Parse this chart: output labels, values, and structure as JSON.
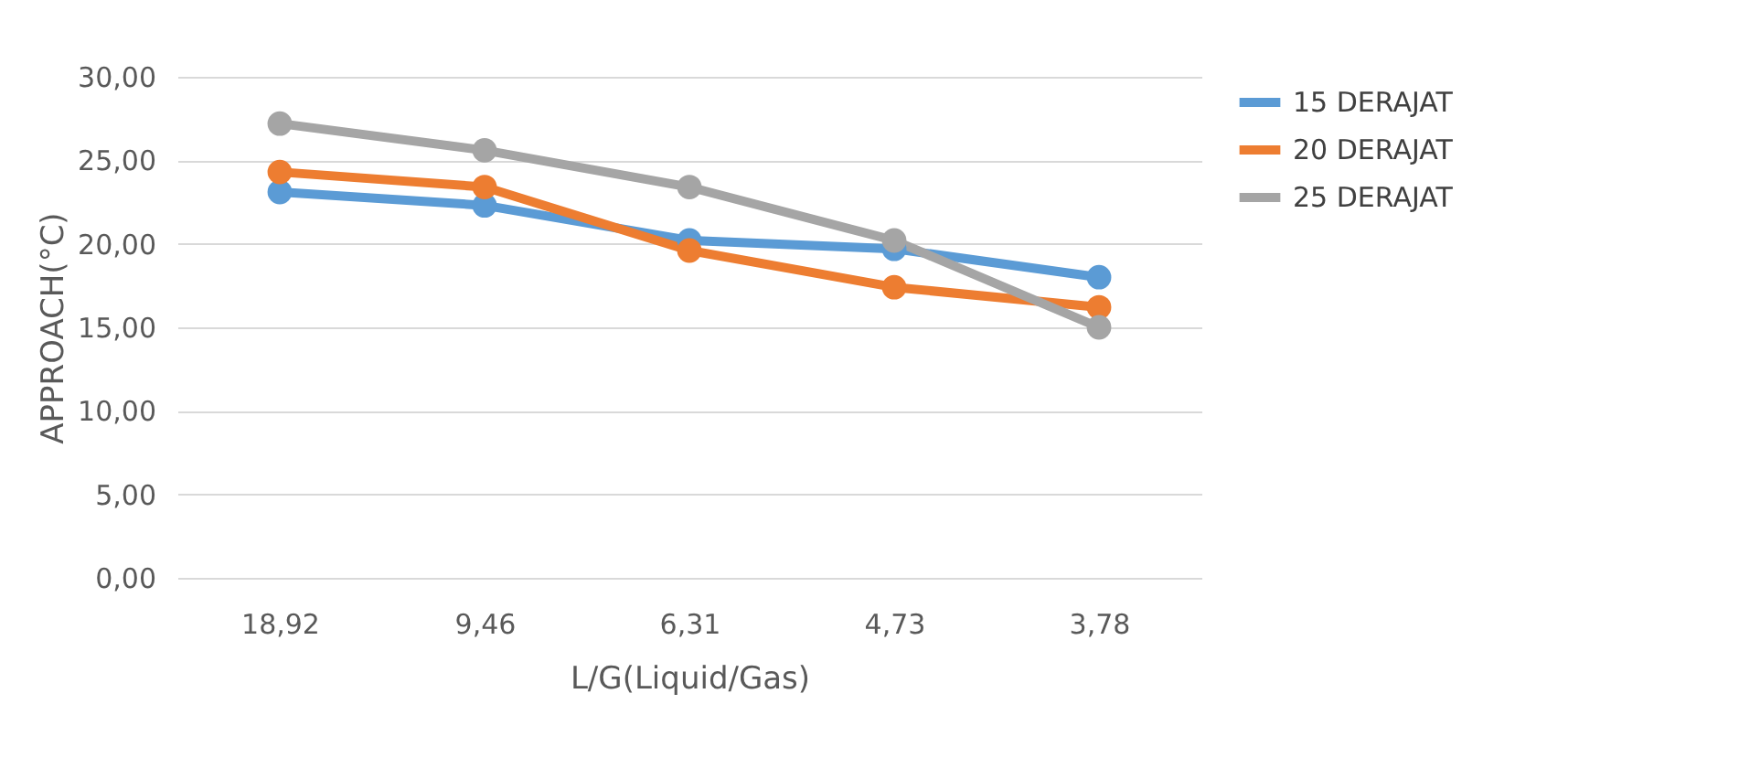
{
  "chart_data": {
    "type": "line",
    "xlabel": "L/G(Liquid/Gas)",
    "ylabel": "APPROACH(°C)",
    "categories": [
      "18,92",
      "9,46",
      "6,31",
      "4,73",
      "3,78"
    ],
    "series": [
      {
        "name": "15 DERAJAT",
        "color": "#5b9bd5",
        "values": [
          23.1,
          22.3,
          20.2,
          19.7,
          18.0
        ]
      },
      {
        "name": "20 DERAJAT",
        "color": "#ed7d31",
        "values": [
          24.3,
          23.4,
          19.6,
          17.4,
          16.2
        ]
      },
      {
        "name": "25 DERAJAT",
        "color": "#a5a5a5",
        "values": [
          27.2,
          25.6,
          23.4,
          20.2,
          15.0
        ]
      }
    ],
    "ylim": [
      0,
      30
    ],
    "yticks": [
      {
        "value": 0,
        "label": "0,00"
      },
      {
        "value": 5,
        "label": "5,00"
      },
      {
        "value": 10,
        "label": "10,00"
      },
      {
        "value": 15,
        "label": "15,00"
      },
      {
        "value": 20,
        "label": "20,00"
      },
      {
        "value": 25,
        "label": "25,00"
      },
      {
        "value": 30,
        "label": "30,00"
      }
    ],
    "grid": "y",
    "legend": "top right",
    "marker": "circle",
    "line_style": "solid"
  }
}
